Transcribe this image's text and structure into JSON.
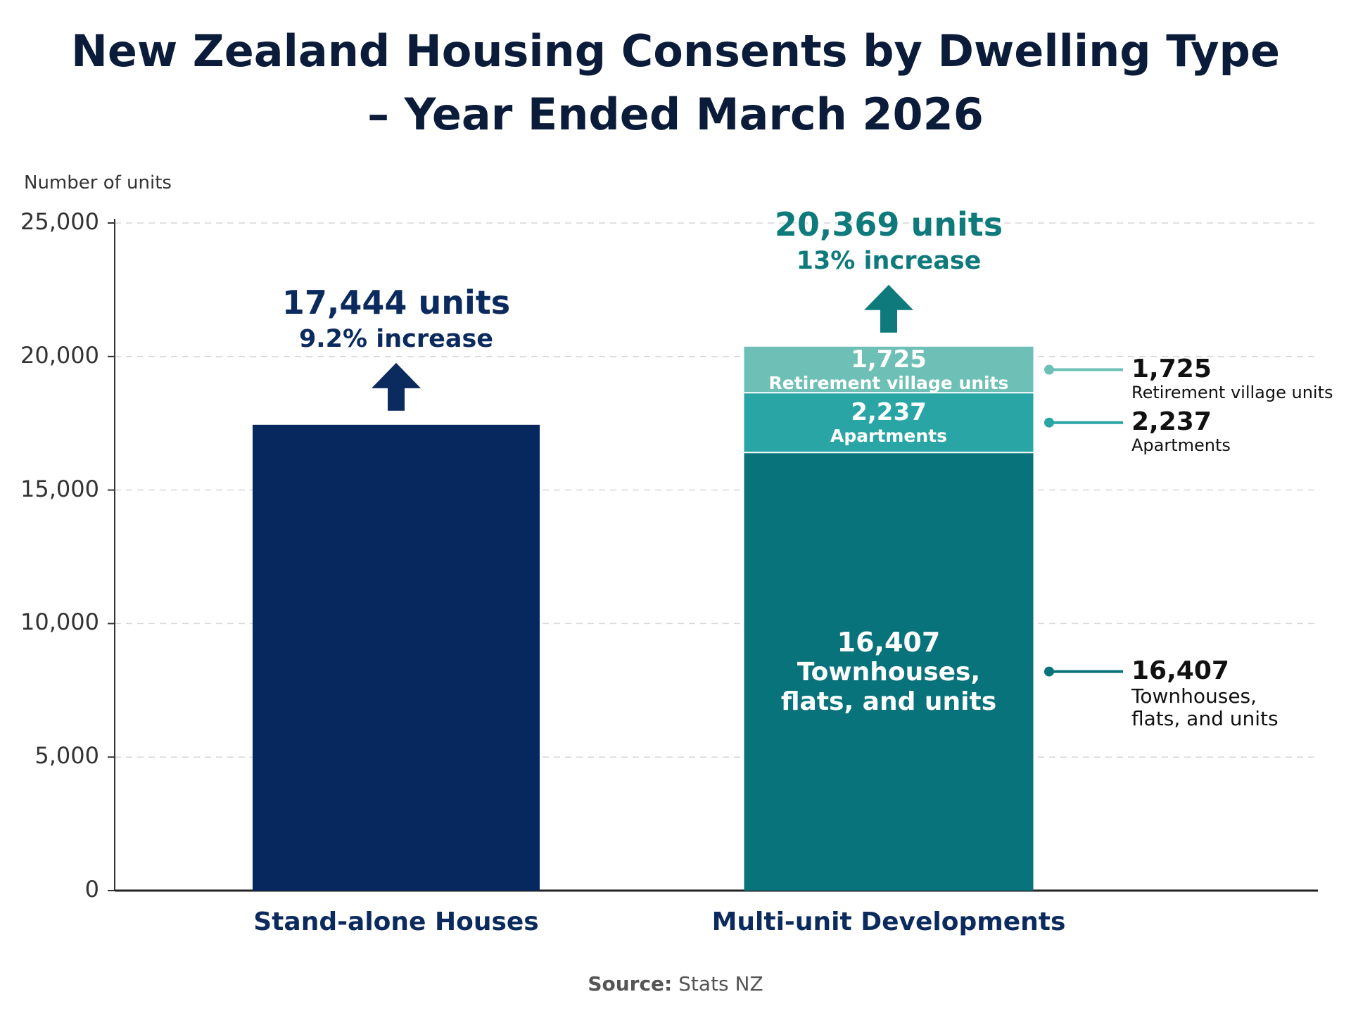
{
  "chart_data": {
    "type": "bar",
    "stacked": true,
    "title": "New Zealand Housing Consents by Dwelling Type – Year Ended March 2026",
    "y_label": "Number of units",
    "categories": [
      "Stand-alone Houses",
      "Multi-unit Developments"
    ],
    "series": [
      {
        "color": "#06285e",
        "values": [
          17444,
          null
        ]
      },
      {
        "name": "Townhouses, flats, and units",
        "color": "#08737a",
        "values": [
          null,
          16407
        ],
        "value_labels": [
          null,
          "16,407"
        ]
      },
      {
        "name": "Apartments",
        "color": "#2aa5a5",
        "values": [
          null,
          2237
        ],
        "value_labels": [
          null,
          "2,237"
        ]
      },
      {
        "name": "Retirement village units",
        "color": "#6ebfb5",
        "values": [
          null,
          1725
        ],
        "value_labels": [
          null,
          "1,725"
        ]
      }
    ],
    "totals": [
      17444,
      20369
    ],
    "total_labels": [
      "17,444 units",
      "20,369 units"
    ],
    "change_labels": [
      "9.2% increase",
      "13% increase"
    ],
    "label_colors": [
      "#0b2a5e",
      "#0f7a7c"
    ],
    "ylim": [
      0,
      25000
    ],
    "yticks": [
      0,
      {
        "value": 5000,
        "label": "5,000"
      },
      {
        "value": 10000,
        "label": "10,000"
      },
      {
        "value": 15000,
        "label": "15,000"
      },
      {
        "value": 20000,
        "label": "20,000"
      },
      {
        "value": 25000,
        "label": "25,000"
      }
    ],
    "grid": true,
    "source_label": "Source:",
    "source": "Stats NZ"
  }
}
